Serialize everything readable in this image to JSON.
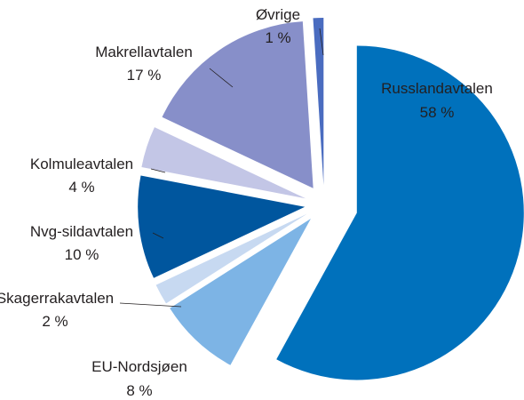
{
  "chart_data": {
    "type": "pie",
    "title": "",
    "unit": "%",
    "slices": [
      {
        "name": "Russlandavtalen",
        "value": 58,
        "value_label": "58 %",
        "color": "#0071bc"
      },
      {
        "name": "EU-Nordsjøen",
        "value": 8,
        "value_label": "8 %",
        "color": "#7db4e5"
      },
      {
        "name": "Skagerrakavtalen",
        "value": 2,
        "value_label": "2 %",
        "color": "#c7d9f1"
      },
      {
        "name": "Nvg-sildavtalen",
        "value": 10,
        "value_label": "10 %",
        "color": "#00569e"
      },
      {
        "name": "Kolmuleavtalen",
        "value": 4,
        "value_label": "4 %",
        "color": "#c3c6e6"
      },
      {
        "name": "Makrellavtalen",
        "value": 17,
        "value_label": "17 %",
        "color": "#878fc9"
      },
      {
        "name": "Øvrige",
        "value": 1,
        "value_label": "1 %",
        "color": "#4a6cc0"
      }
    ],
    "start_angle_deg": 0,
    "direction": "clockwise",
    "exploded": true,
    "legend": "none"
  }
}
